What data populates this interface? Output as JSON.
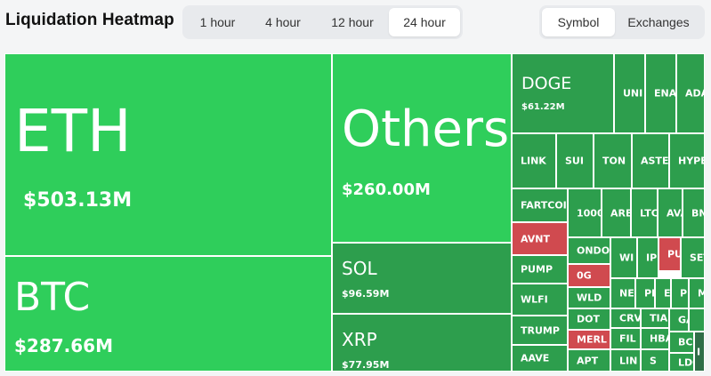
{
  "header": {
    "title": "Liquidation Heatmap"
  },
  "time_tabs": [
    "1 hour",
    "4 hour",
    "12 hour",
    "24 hour"
  ],
  "time_active": "24 hour",
  "view_tabs": [
    "Symbol",
    "Exchanges"
  ],
  "view_active": "Symbol",
  "tiles": {
    "eth": {
      "symbol": "ETH",
      "value": "$503.13M"
    },
    "btc": {
      "symbol": "BTC",
      "value": "$287.66M"
    },
    "others": {
      "symbol": "Others",
      "value": "$260.00M"
    },
    "sol": {
      "symbol": "SOL",
      "value": "$96.59M"
    },
    "xrp": {
      "symbol": "XRP",
      "value": "$77.95M"
    },
    "doge": {
      "symbol": "DOGE",
      "value": "$61.22M"
    },
    "uni": {
      "symbol": "UNI"
    },
    "ena": {
      "symbol": "ENA"
    },
    "ada": {
      "symbol": "ADA"
    },
    "link": {
      "symbol": "LINK"
    },
    "sui": {
      "symbol": "SUI"
    },
    "ton": {
      "symbol": "TON"
    },
    "aster": {
      "symbol": "ASTER"
    },
    "hype": {
      "symbol": "HYPE"
    },
    "fartcoin": {
      "symbol": "FARTCOIN"
    },
    "k1000": {
      "symbol": "1000"
    },
    "arb": {
      "symbol": "ARB"
    },
    "ltc": {
      "symbol": "LTC"
    },
    "ava": {
      "symbol": "AVA"
    },
    "bn": {
      "symbol": "BN"
    },
    "avnt": {
      "symbol": "AVNT"
    },
    "ondo": {
      "symbol": "ONDO"
    },
    "wi": {
      "symbol": "WI"
    },
    "ip": {
      "symbol": "IP"
    },
    "pu": {
      "symbol": "PU"
    },
    "set": {
      "symbol": "SET"
    },
    "pump": {
      "symbol": "PUMP"
    },
    "og": {
      "symbol": "0G"
    },
    "wlfi": {
      "symbol": "WLFI"
    },
    "wld": {
      "symbol": "WLD"
    },
    "ne": {
      "symbol": "NE"
    },
    "pe": {
      "symbol": "PE"
    },
    "et": {
      "symbol": "ET"
    },
    "pi": {
      "symbol": "PI"
    },
    "m": {
      "symbol": "M"
    },
    "trump": {
      "symbol": "TRUMP"
    },
    "dot": {
      "symbol": "DOT"
    },
    "crv": {
      "symbol": "CRV"
    },
    "tia": {
      "symbol": "TIA"
    },
    "ga": {
      "symbol": "GA"
    },
    "merl": {
      "symbol": "MERL"
    },
    "fil": {
      "symbol": "FIL"
    },
    "hba": {
      "symbol": "HBA"
    },
    "bch": {
      "symbol": "BCH"
    },
    "aave": {
      "symbol": "AAVE"
    },
    "apt": {
      "symbol": "APT"
    },
    "lin": {
      "symbol": "LIN"
    },
    "s": {
      "symbol": "S"
    },
    "ldo": {
      "symbol": "LDO"
    },
    "i": {
      "symbol": "I"
    }
  }
}
